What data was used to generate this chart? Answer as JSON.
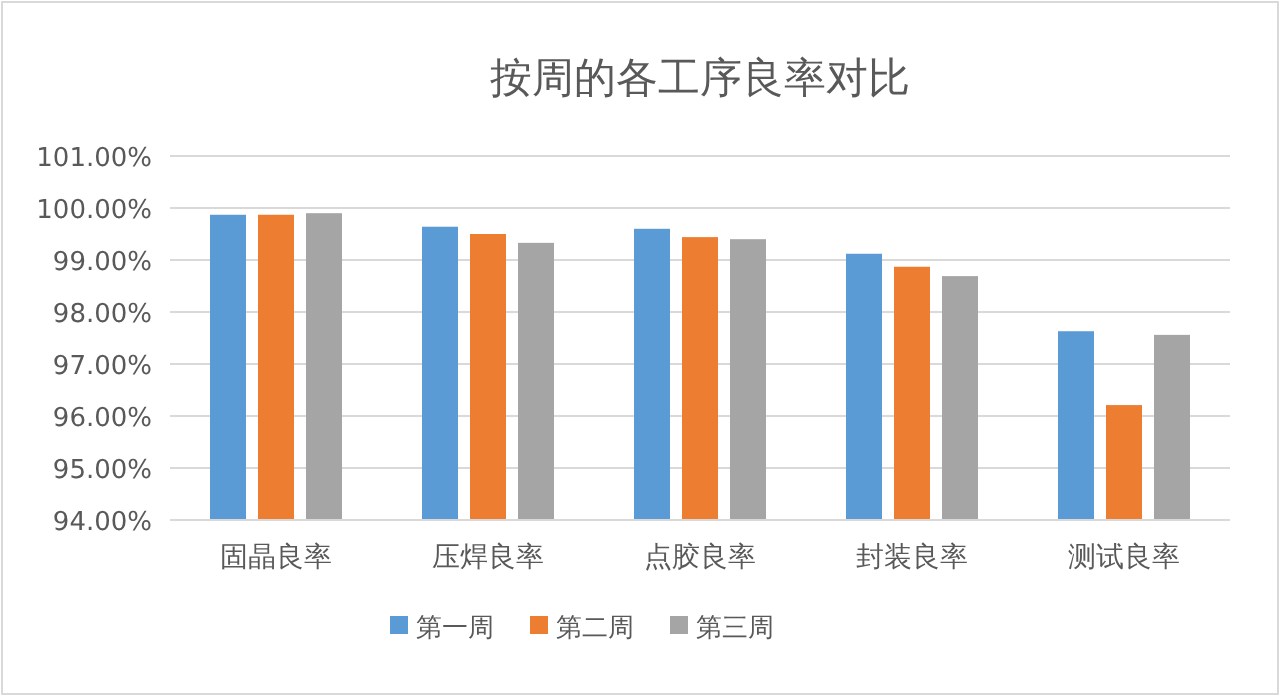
{
  "chart_data": {
    "type": "bar",
    "title": "按周的各工序良率对比",
    "categories": [
      "固晶良率",
      "压焊良率",
      "点胶良率",
      "封装良率",
      "测试良率"
    ],
    "series": [
      {
        "name": "第一周",
        "color": "#5b9bd5",
        "values": [
          99.87,
          99.64,
          99.6,
          99.12,
          97.63
        ]
      },
      {
        "name": "第二周",
        "color": "#ed7d31",
        "values": [
          99.87,
          99.5,
          99.44,
          98.87,
          96.21
        ]
      },
      {
        "name": "第三周",
        "color": "#a5a5a5",
        "values": [
          99.9,
          99.33,
          99.4,
          98.69,
          97.56
        ]
      }
    ],
    "ylim": [
      94,
      101
    ],
    "yticks": [
      {
        "value": 94,
        "label": "94.00%"
      },
      {
        "value": 95,
        "label": "95.00%"
      },
      {
        "value": 96,
        "label": "96.00%"
      },
      {
        "value": 97,
        "label": "97.00%"
      },
      {
        "value": 98,
        "label": "98.00%"
      },
      {
        "value": 99,
        "label": "99.00%"
      },
      {
        "value": 100,
        "label": "100.00%"
      },
      {
        "value": 101,
        "label": "101.00%"
      }
    ],
    "grid": "y",
    "legend": "bottom"
  }
}
